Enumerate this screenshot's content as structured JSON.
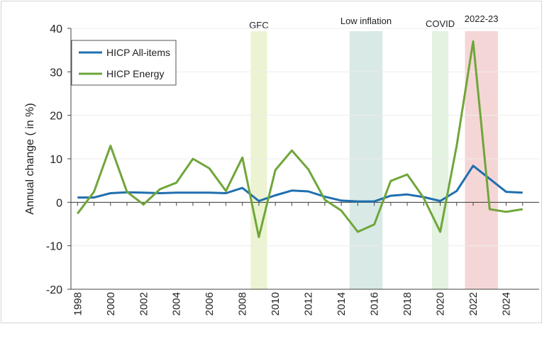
{
  "chart_data": {
    "type": "line",
    "ylabel": "Annual change ( in %)",
    "xlabel": "",
    "title": "",
    "ylim": [
      -20,
      40
    ],
    "yticks": [
      -20,
      -10,
      0,
      10,
      20,
      30,
      40
    ],
    "x_tick_labels": [
      "1998",
      "2000",
      "2002",
      "2004",
      "2006",
      "2008",
      "2010",
      "2012",
      "2014",
      "2016",
      "2018",
      "2020",
      "2022",
      "2024"
    ],
    "x": [
      1998,
      1999,
      2000,
      2001,
      2002,
      2003,
      2004,
      2005,
      2006,
      2007,
      2008,
      2009,
      2010,
      2011,
      2012,
      2013,
      2014,
      2015,
      2016,
      2017,
      2018,
      2019,
      2020,
      2021,
      2022,
      2023,
      2024,
      2025
    ],
    "grid": "horizontal",
    "legend_position": "top-left",
    "series": [
      {
        "name": "HICP All-items",
        "color": "#1f6faf",
        "values": [
          1.1,
          1.1,
          2.1,
          2.3,
          2.2,
          2.1,
          2.2,
          2.2,
          2.2,
          2.1,
          3.3,
          0.3,
          1.6,
          2.7,
          2.5,
          1.3,
          0.4,
          0.2,
          0.2,
          1.5,
          1.8,
          1.2,
          0.3,
          2.6,
          8.4,
          5.4,
          2.4,
          2.2
        ]
      },
      {
        "name": "HICP Energy",
        "color": "#6fa63a",
        "values": [
          -2.6,
          2.4,
          13.0,
          2.4,
          -0.5,
          3.0,
          4.5,
          10.0,
          7.8,
          2.6,
          10.3,
          -8.0,
          7.4,
          11.9,
          7.6,
          0.6,
          -1.9,
          -6.8,
          -5.1,
          4.9,
          6.4,
          1.0,
          -6.8,
          13.0,
          37.0,
          -1.6,
          -2.2,
          -1.6
        ]
      }
    ],
    "periods": [
      {
        "label": "GFC",
        "start": 2008.5,
        "end": 2009.5,
        "color": "#ecf3d2"
      },
      {
        "label": "Low inflation",
        "start": 2014.5,
        "end": 2016.5,
        "color": "#d9e9e6"
      },
      {
        "label": "COVID",
        "start": 2019.5,
        "end": 2020.5,
        "color": "#e3f2e1"
      },
      {
        "label": "2022-23",
        "start": 2021.5,
        "end": 2023.5,
        "color": "#f5d6d6"
      }
    ]
  }
}
